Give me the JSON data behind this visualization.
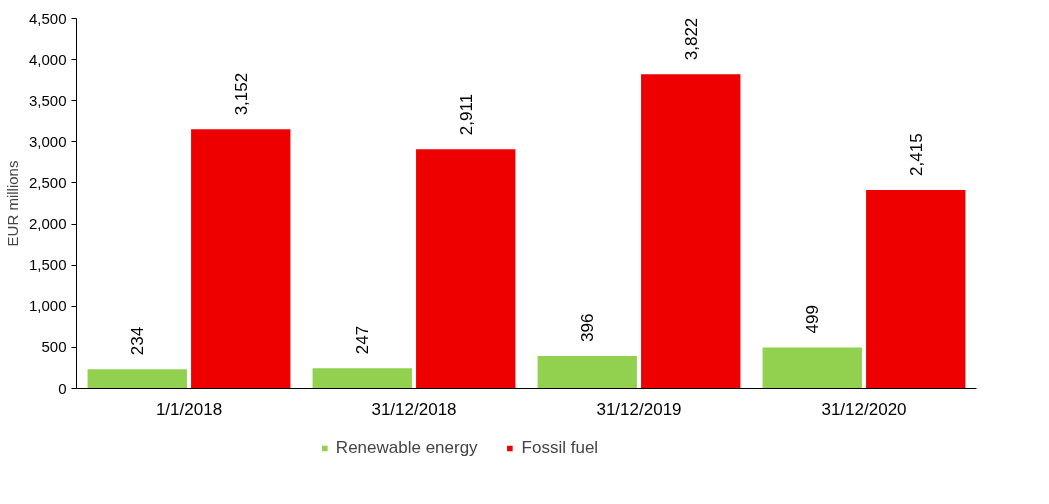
{
  "chart_data": {
    "type": "bar",
    "ylabel": "EUR millions",
    "categories": [
      "1/1/2018",
      "31/12/2018",
      "31/12/2019",
      "31/12/2020"
    ],
    "series": [
      {
        "name": "Renewable energy",
        "color": "#92d050",
        "values": [
          234,
          247,
          396,
          499
        ],
        "value_labels": [
          "234",
          "247",
          "396",
          "499"
        ]
      },
      {
        "name": "Fossil fuel",
        "color": "#ee0000",
        "values": [
          3152,
          2911,
          3822,
          2415
        ],
        "value_labels": [
          "3,152",
          "2,911",
          "3,822",
          "2,415"
        ]
      }
    ],
    "ylim": [
      0,
      4500
    ],
    "yticks": [
      {
        "value": 0,
        "label": "0"
      },
      {
        "value": 500,
        "label": "500"
      },
      {
        "value": 1000,
        "label": "1,000"
      },
      {
        "value": 1500,
        "label": "1,500"
      },
      {
        "value": 2000,
        "label": "2,000"
      },
      {
        "value": 2500,
        "label": "2,500"
      },
      {
        "value": 3000,
        "label": "3,000"
      },
      {
        "value": 3500,
        "label": "3,500"
      },
      {
        "value": 4000,
        "label": "4,000"
      },
      {
        "value": 4500,
        "label": "4,500"
      }
    ],
    "data_labels": true,
    "grid": false,
    "legend": "bottom"
  }
}
